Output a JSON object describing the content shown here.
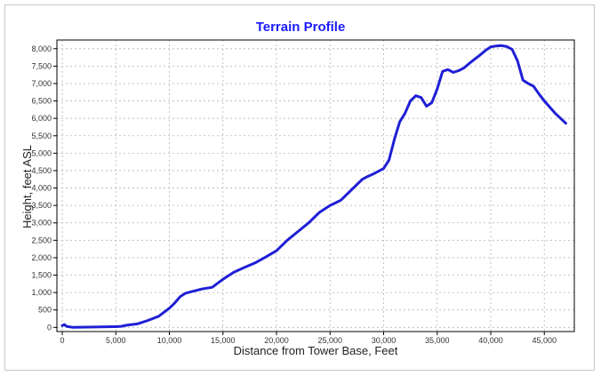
{
  "chart_data": {
    "type": "line",
    "title": "Terrain Profile",
    "xlabel": "Distance from Tower Base, Feet",
    "ylabel": "Height, feet ASL",
    "xlim": [
      -500,
      47800
    ],
    "ylim": [
      -120,
      8250
    ],
    "x_ticks": [
      0,
      5000,
      10000,
      15000,
      20000,
      25000,
      30000,
      35000,
      40000,
      45000
    ],
    "x_tick_labels": [
      "0",
      "5,000",
      "10,000",
      "15,000",
      "20,000",
      "25,000",
      "30,000",
      "35,000",
      "40,000",
      "45,000"
    ],
    "y_ticks": [
      0,
      500,
      1000,
      1500,
      2000,
      2500,
      3000,
      3500,
      4000,
      4500,
      5000,
      5500,
      6000,
      6500,
      7000,
      7500,
      8000
    ],
    "y_tick_labels": [
      "0",
      "500",
      "1,000",
      "1,500",
      "2,000",
      "2,500",
      "3,000",
      "3,500",
      "4,000",
      "4,500",
      "5,000",
      "5,500",
      "6,000",
      "6,500",
      "7,000",
      "7,500",
      "8,000"
    ],
    "grid": true,
    "colors": {
      "line": "#1f1fd6",
      "title": "#1a1aff"
    },
    "series": [
      {
        "x": [
          0,
          200,
          400,
          1000,
          3000,
          5000,
          5500,
          6000,
          7000,
          8000,
          9000,
          10000,
          10500,
          11000,
          11500,
          12000,
          12500,
          13000,
          14000,
          15000,
          16000,
          17000,
          18000,
          19000,
          20000,
          21000,
          22000,
          23000,
          24000,
          25000,
          26000,
          27000,
          28000,
          28500,
          29000,
          30000,
          30500,
          31000,
          31500,
          32000,
          32500,
          33000,
          33500,
          34000,
          34500,
          35000,
          35500,
          36000,
          36500,
          37000,
          37500,
          38000,
          38500,
          39000,
          39500,
          40000,
          40500,
          41000,
          41500,
          42000,
          42500,
          43000,
          43500,
          44000,
          44500,
          45000,
          46000,
          47000
        ],
        "y": [
          50,
          80,
          30,
          0,
          10,
          20,
          30,
          60,
          100,
          200,
          320,
          550,
          700,
          880,
          980,
          1020,
          1060,
          1100,
          1150,
          1380,
          1580,
          1720,
          1850,
          2020,
          2200,
          2500,
          2750,
          3000,
          3300,
          3500,
          3650,
          3950,
          4250,
          4330,
          4400,
          4560,
          4800,
          5400,
          5900,
          6150,
          6500,
          6650,
          6600,
          6350,
          6450,
          6850,
          7350,
          7400,
          7320,
          7370,
          7450,
          7580,
          7700,
          7820,
          7950,
          8050,
          8080,
          8090,
          8060,
          7980,
          7650,
          7100,
          7000,
          6920,
          6700,
          6500,
          6150,
          5860
        ]
      }
    ]
  }
}
